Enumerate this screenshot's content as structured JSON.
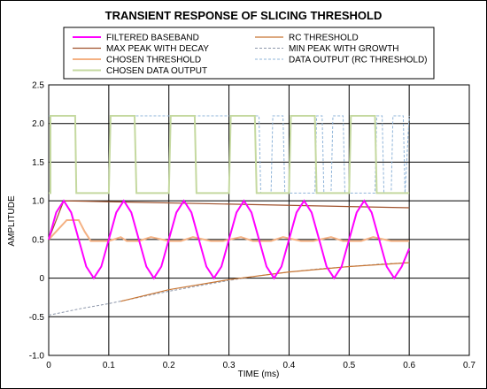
{
  "chart_data": {
    "type": "line",
    "title": "TRANSIENT RESPONSE OF SLICING THRESHOLD",
    "xlabel": "TIME (ms)",
    "ylabel": "AMPLITUDE",
    "xlim": [
      0,
      0.7
    ],
    "ylim": [
      -1.0,
      2.5
    ],
    "xticks": [
      "0",
      "0.1",
      "0.2",
      "0.3",
      "0.4",
      "0.5",
      "0.6",
      "0.7"
    ],
    "yticks": [
      "-1.0",
      "-0.5",
      "0",
      "0.5",
      "1.0",
      "1.5",
      "2.0",
      "2.5"
    ],
    "grid": true,
    "legend_position": "top",
    "series": [
      {
        "name": "FILTERED BASEBAND",
        "color": "#ff00ff",
        "style": "solid-thick",
        "x": [
          0,
          0.0125,
          0.025,
          0.0375,
          0.05,
          0.0625,
          0.075,
          0.0875,
          0.1,
          0.1125,
          0.125,
          0.1375,
          0.15,
          0.1625,
          0.175,
          0.1875,
          0.2,
          0.2125,
          0.225,
          0.2375,
          0.25,
          0.2625,
          0.275,
          0.2875,
          0.3,
          0.3125,
          0.325,
          0.3375,
          0.35,
          0.3625,
          0.375,
          0.3875,
          0.4,
          0.4125,
          0.425,
          0.4375,
          0.45,
          0.4625,
          0.475,
          0.4875,
          0.5,
          0.5125,
          0.525,
          0.5375,
          0.55,
          0.5625,
          0.575,
          0.5875,
          0.6
        ],
        "y": [
          0.5,
          0.85,
          1.0,
          0.85,
          0.5,
          0.15,
          0.0,
          0.15,
          0.5,
          0.85,
          1.0,
          0.85,
          0.5,
          0.15,
          0.0,
          0.15,
          0.5,
          0.85,
          1.0,
          0.85,
          0.5,
          0.15,
          0.0,
          0.15,
          0.5,
          0.85,
          1.0,
          0.85,
          0.5,
          0.15,
          0.0,
          0.15,
          0.5,
          0.85,
          1.0,
          0.85,
          0.5,
          0.15,
          0.0,
          0.15,
          0.5,
          0.85,
          1.0,
          0.85,
          0.5,
          0.15,
          0.0,
          0.15,
          0.38
        ]
      },
      {
        "name": "MAX PEAK WITH DECAY",
        "color": "#a0522d",
        "style": "solid",
        "x": [
          0,
          0.025,
          0.6
        ],
        "y": [
          0.5,
          1.0,
          0.91
        ]
      },
      {
        "name": "CHOSEN THRESHOLD",
        "color": "#f4b183",
        "style": "solid-thick",
        "x": [
          0,
          0.03,
          0.05,
          0.06,
          0.07,
          0.1,
          0.12,
          0.13,
          0.15,
          0.17,
          0.2,
          0.22,
          0.24,
          0.27,
          0.29,
          0.32,
          0.34,
          0.37,
          0.39,
          0.42,
          0.44,
          0.47,
          0.49,
          0.52,
          0.54,
          0.57,
          0.6
        ],
        "y": [
          0.5,
          0.75,
          0.75,
          0.6,
          0.48,
          0.48,
          0.53,
          0.48,
          0.48,
          0.53,
          0.48,
          0.48,
          0.53,
          0.48,
          0.48,
          0.53,
          0.48,
          0.48,
          0.53,
          0.48,
          0.48,
          0.53,
          0.48,
          0.48,
          0.53,
          0.48,
          0.48
        ]
      },
      {
        "name": "CHOSEN DATA OUTPUT",
        "color": "#c5d9a0",
        "style": "solid-thick",
        "x": [
          0,
          0.003,
          0.003,
          0.044,
          0.046,
          0.1,
          0.103,
          0.143,
          0.146,
          0.2,
          0.203,
          0.243,
          0.246,
          0.3,
          0.303,
          0.343,
          0.346,
          0.4,
          0.403,
          0.443,
          0.446,
          0.5,
          0.503,
          0.543,
          0.546,
          0.6
        ],
        "y": [
          1.1,
          1.1,
          2.1,
          2.1,
          1.1,
          1.1,
          2.1,
          2.1,
          1.1,
          1.1,
          2.1,
          2.1,
          1.1,
          1.1,
          2.1,
          2.1,
          1.1,
          1.1,
          2.1,
          2.1,
          1.1,
          1.1,
          2.1,
          2.1,
          1.1,
          1.1
        ]
      },
      {
        "name": "RC THRESHOLD",
        "color": "#c87533",
        "style": "solid",
        "x": [
          0.12,
          0.2,
          0.3,
          0.4,
          0.5,
          0.6
        ],
        "y": [
          -0.3,
          -0.15,
          -0.02,
          0.08,
          0.15,
          0.2
        ]
      },
      {
        "name": "MIN PEAK WITH GROWTH",
        "color": "#8c96aa",
        "style": "dashed",
        "x": [
          0,
          0.05,
          0.1,
          0.15,
          0.2,
          0.25,
          0.3,
          0.35,
          0.4,
          0.45,
          0.5,
          0.55,
          0.6
        ],
        "y": [
          -0.48,
          -0.4,
          -0.33,
          -0.25,
          -0.17,
          -0.1,
          -0.03,
          0.03,
          0.08,
          0.12,
          0.15,
          0.18,
          0.2
        ]
      },
      {
        "name": "DATA OUTPUT (RC THRESHOLD)",
        "color": "#8fb4d9",
        "style": "dashed",
        "x": [
          0,
          0.0,
          0.044,
          0.046,
          0.1,
          0.103,
          0.143,
          0.146,
          0.2,
          0.203,
          0.243,
          0.246,
          0.3,
          0.303,
          0.343,
          0.346,
          0.35,
          0.353,
          0.37,
          0.373,
          0.39,
          0.393,
          0.443,
          0.446,
          0.455,
          0.458,
          0.47,
          0.473,
          0.49,
          0.493,
          0.543,
          0.546,
          0.555,
          0.558,
          0.57,
          0.573,
          0.59,
          0.593,
          0.6
        ],
        "y": [
          2.1,
          2.1,
          2.1,
          1.1,
          1.1,
          2.1,
          2.1,
          2.1,
          2.1,
          2.1,
          2.1,
          2.1,
          2.1,
          2.1,
          2.1,
          2.1,
          2.1,
          1.1,
          1.1,
          2.1,
          2.1,
          1.1,
          1.1,
          2.1,
          2.1,
          1.1,
          1.1,
          2.1,
          2.1,
          1.1,
          1.1,
          2.1,
          2.1,
          1.1,
          1.1,
          2.1,
          2.1,
          1.1,
          2.1
        ]
      }
    ]
  }
}
